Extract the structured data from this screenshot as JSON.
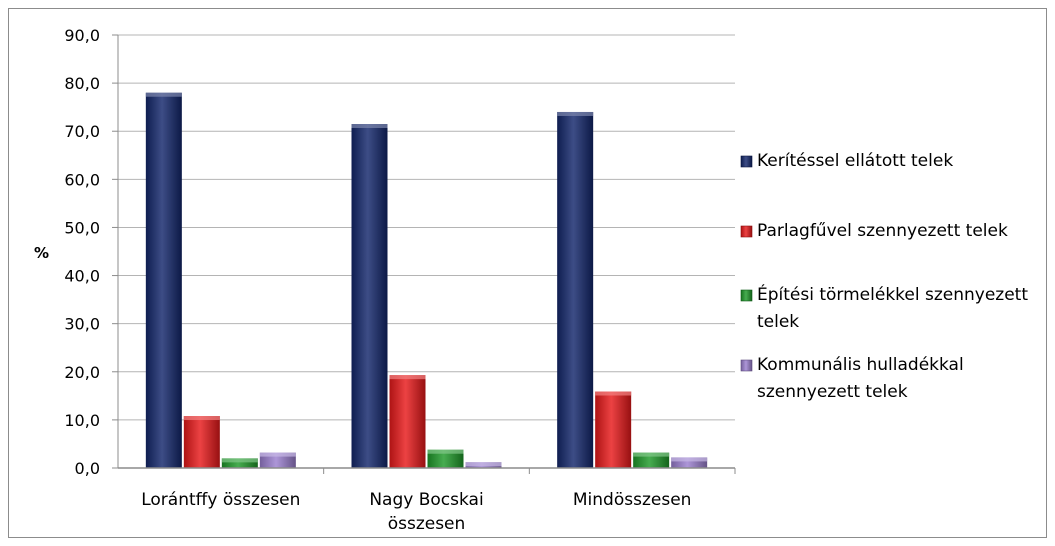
{
  "chart_data": {
    "type": "bar",
    "title": "",
    "xlabel": "",
    "ylabel": "%",
    "ylim": [
      0,
      90
    ],
    "yticks": [
      "0,0",
      "10,0",
      "20,0",
      "30,0",
      "40,0",
      "50,0",
      "60,0",
      "70,0",
      "80,0",
      "90,0"
    ],
    "categories": [
      [
        "Lorántffy összesen"
      ],
      [
        "Nagy Bocskai",
        "összesen"
      ],
      [
        "Mindösszesen"
      ]
    ],
    "series": [
      {
        "name": [
          "Kerítéssel ellátott telek"
        ],
        "color": "#12266b",
        "values": [
          78.0,
          71.5,
          74.0
        ]
      },
      {
        "name": [
          "Parlagfűvel szennyezett telek"
        ],
        "color": "#e8191a",
        "values": [
          10.8,
          19.3,
          15.9
        ]
      },
      {
        "name": [
          "Építési törmelékkel szennyezett",
          "telek"
        ],
        "color": "#1e9a2a",
        "values": [
          2.0,
          3.8,
          3.2
        ]
      },
      {
        "name": [
          "Kommunális hulladékkal",
          "szennyezett telek"
        ],
        "color": "#9b7fd0",
        "values": [
          3.2,
          1.2,
          2.2
        ]
      }
    ],
    "grid": true,
    "legend_position": "right"
  }
}
